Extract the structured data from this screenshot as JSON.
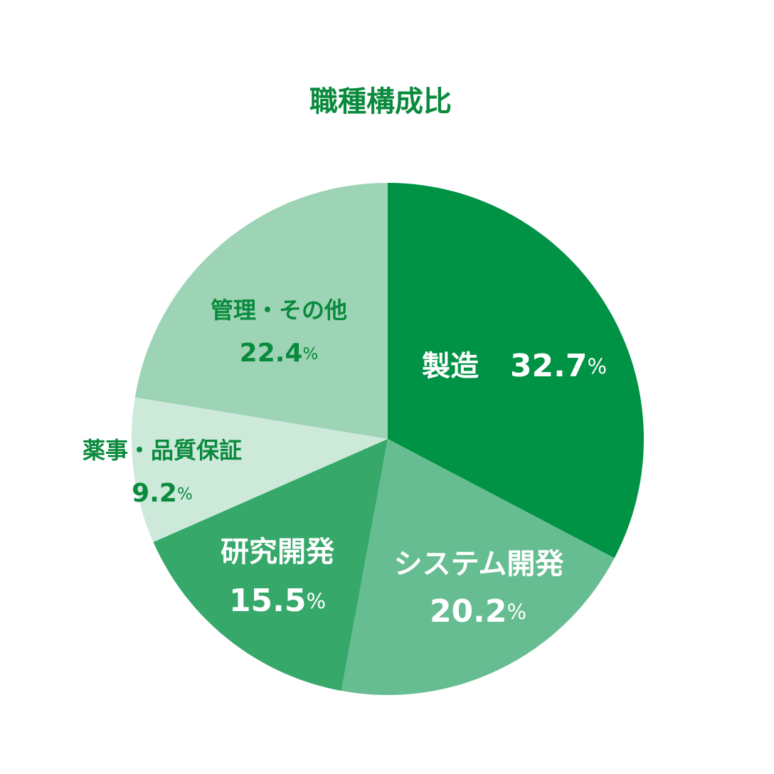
{
  "chart_data": {
    "type": "pie",
    "title": "職種構成比",
    "categories": [
      "製造",
      "システム開発",
      "研究開発",
      "薬事・品質保証",
      "管理・その他"
    ],
    "values": [
      32.7,
      20.2,
      15.5,
      9.2,
      22.4
    ],
    "value_labels": [
      "32.7%",
      "20.2%",
      "15.5%",
      "9.2%",
      "22.4%"
    ],
    "colors": [
      "#009245",
      "#66bd91",
      "#36a86a",
      "#cde9da",
      "#9dd4b5"
    ]
  }
}
